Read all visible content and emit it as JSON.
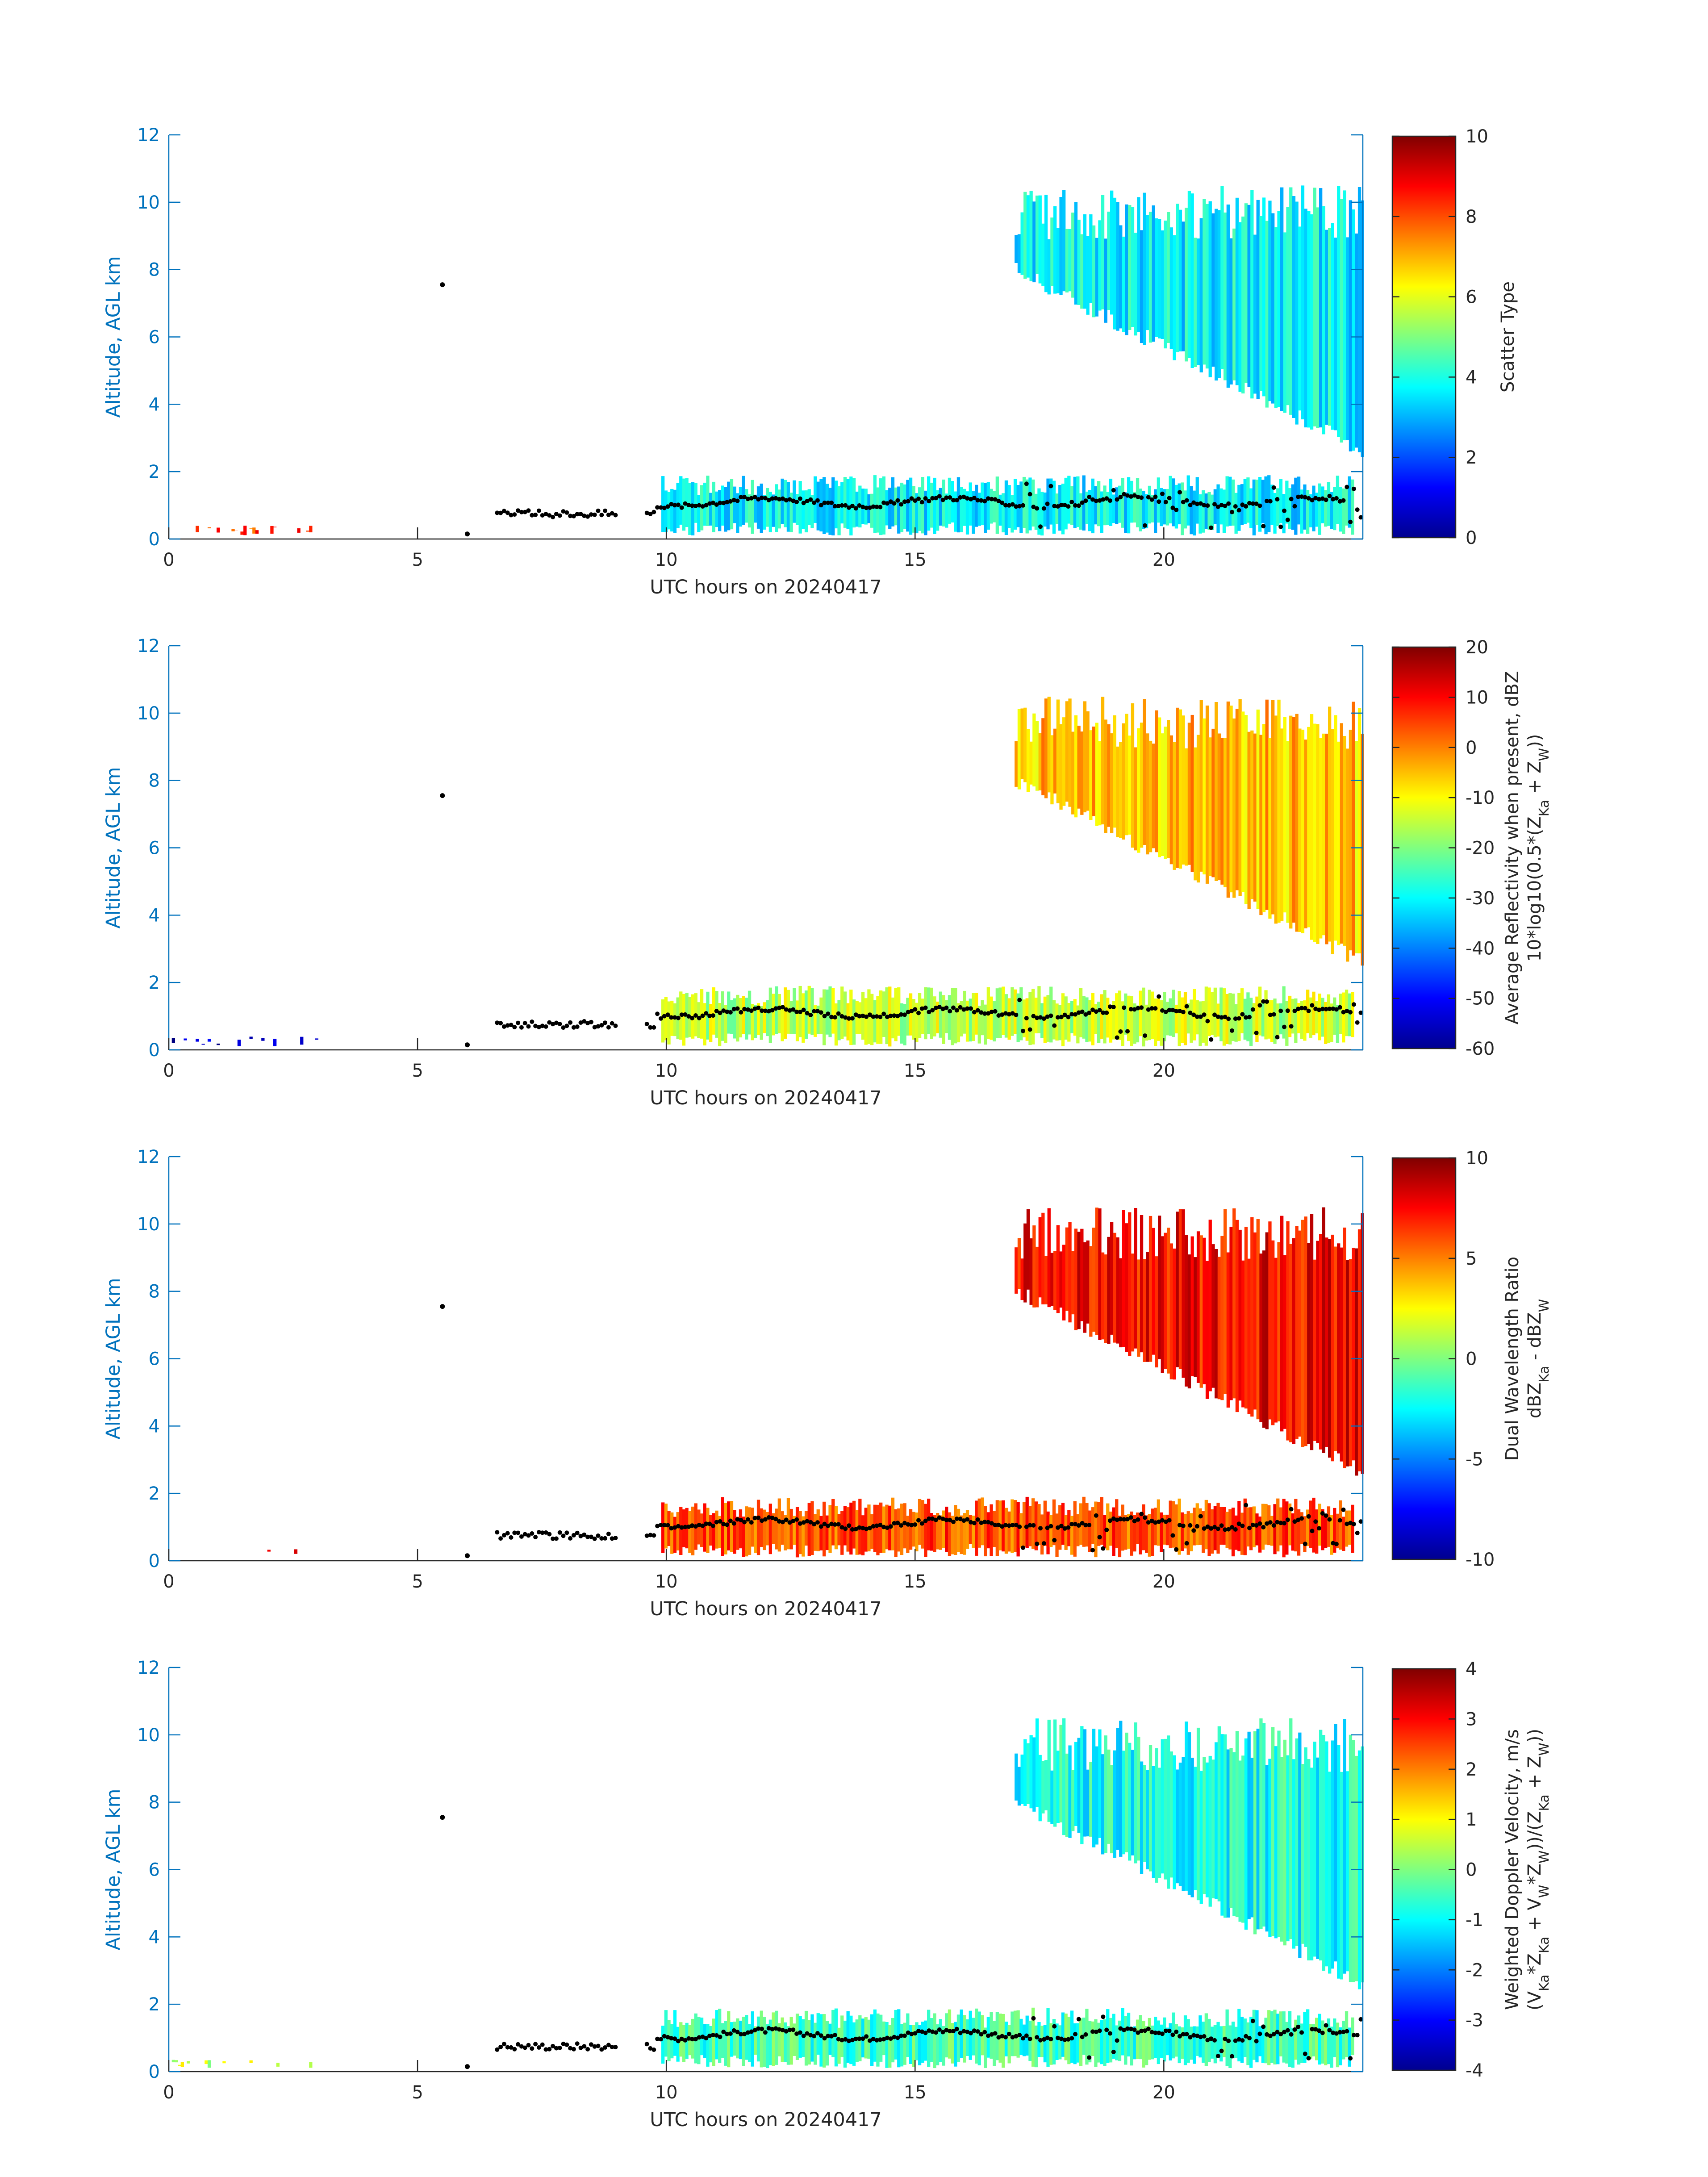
{
  "colors": {
    "axis_blue": "#0072BD",
    "text_dark": "#262626",
    "colormap": "jet",
    "marker": "#000000"
  },
  "chart_data": [
    {
      "type": "heatmap",
      "title": "",
      "xlabel": "UTC hours on 20240417",
      "ylabel": "Altitude, AGL km",
      "xlim": [
        0,
        24
      ],
      "ylim": [
        0,
        12
      ],
      "xticks": [
        "0",
        "5",
        "10",
        "15",
        "20"
      ],
      "yticks": [
        "0",
        "2",
        "4",
        "6",
        "8",
        "10",
        "12"
      ],
      "colorbar": {
        "label_lines": [
          "Scatter Type"
        ],
        "range": [
          0,
          10
        ],
        "ticks": [
          "0",
          "2",
          "4",
          "6",
          "8",
          "10"
        ]
      },
      "regions": [
        {
          "name": "upper cloud layer",
          "x": [
            17,
            24
          ],
          "top_km": 10.5,
          "base_km_start": 8.0,
          "base_km_end": 2.6,
          "value": 3.7
        },
        {
          "name": "boundary layer cloud",
          "x": [
            9.9,
            23.8
          ],
          "top_km": 1.9,
          "base_km": 0.1,
          "value": 3.7
        },
        {
          "name": "low clutter",
          "x": [
            0,
            3.0
          ],
          "top_km": 0.4,
          "base_km": 0.1,
          "value": 8.2
        }
      ],
      "cloud_base_points": {
        "x_range": [
          6.6,
          24
        ],
        "typical_km": 1.1,
        "isolated": [
          [
            5.5,
            7.55
          ],
          [
            6.0,
            0.15
          ]
        ]
      }
    },
    {
      "type": "heatmap",
      "title": "",
      "xlabel": "UTC hours on 20240417",
      "ylabel": "Altitude, AGL km",
      "xlim": [
        0,
        24
      ],
      "ylim": [
        0,
        12
      ],
      "xticks": [
        "0",
        "5",
        "10",
        "15",
        "20"
      ],
      "yticks": [
        "0",
        "2",
        "4",
        "6",
        "8",
        "10",
        "12"
      ],
      "colorbar": {
        "label_lines": [
          "Average Reflectivity when present, dBZ",
          "10*log10(0.5*(Z_Ka + Z_W))"
        ],
        "range": [
          -60,
          20
        ],
        "ticks": [
          "-60",
          "-50",
          "-40",
          "-30",
          "-20",
          "-10",
          "0",
          "10",
          "20"
        ]
      },
      "regions": [
        {
          "name": "upper cloud layer",
          "x": [
            17,
            24
          ],
          "top_km": 10.5,
          "base_km_start": 8.0,
          "base_km_end": 2.6,
          "value": -5
        },
        {
          "name": "boundary layer cloud",
          "x": [
            9.9,
            23.8
          ],
          "top_km": 1.9,
          "base_km": 0.1,
          "value": -15
        },
        {
          "name": "low clutter",
          "x": [
            0,
            3.0
          ],
          "top_km": 0.4,
          "base_km": 0.1,
          "value": -55
        }
      ],
      "cloud_base_points": {
        "x_range": [
          6.6,
          24
        ],
        "typical_km": 1.1,
        "isolated": [
          [
            5.5,
            7.55
          ],
          [
            6.0,
            0.15
          ]
        ]
      }
    },
    {
      "type": "heatmap",
      "title": "",
      "xlabel": "UTC hours on 20240417",
      "ylabel": "Altitude, AGL km",
      "xlim": [
        0,
        24
      ],
      "ylim": [
        0,
        12
      ],
      "xticks": [
        "0",
        "5",
        "10",
        "15",
        "20"
      ],
      "yticks": [
        "0",
        "2",
        "4",
        "6",
        "8",
        "10",
        "12"
      ],
      "colorbar": {
        "label_lines": [
          "Dual Wavelength Ratio",
          "dBZ_Ka - dBZ_W"
        ],
        "range": [
          -10,
          10
        ],
        "ticks": [
          "-10",
          "-5",
          "0",
          "5",
          "10"
        ]
      },
      "regions": [
        {
          "name": "upper cloud layer",
          "x": [
            17,
            24
          ],
          "top_km": 10.5,
          "base_km_start": 8.0,
          "base_km_end": 2.6,
          "value": 7.5
        },
        {
          "name": "boundary layer cloud",
          "x": [
            9.9,
            23.8
          ],
          "top_km": 1.9,
          "base_km": 0.1,
          "value": 6.0
        },
        {
          "name": "low clutter",
          "x": [
            1.8,
            2.6
          ],
          "top_km": 0.35,
          "base_km": 0.2,
          "value": 8.0
        }
      ],
      "cloud_base_points": {
        "x_range": [
          6.6,
          24
        ],
        "typical_km": 1.1,
        "isolated": [
          [
            5.5,
            7.55
          ],
          [
            6.0,
            0.15
          ]
        ]
      }
    },
    {
      "type": "heatmap",
      "title": "",
      "xlabel": "UTC hours on 20240417",
      "ylabel": "Altitude, AGL km",
      "xlim": [
        0,
        24
      ],
      "ylim": [
        0,
        12
      ],
      "xticks": [
        "0",
        "5",
        "10",
        "15",
        "20"
      ],
      "yticks": [
        "0",
        "2",
        "4",
        "6",
        "8",
        "10",
        "12"
      ],
      "colorbar": {
        "label_lines": [
          "Weighted Doppler Velocity, m/s",
          "(V_Ka*Z_Ka + V_W*Z_W))/(Z_Ka + Z_W))"
        ],
        "range": [
          -4,
          4
        ],
        "ticks": [
          "-4",
          "-3",
          "-2",
          "-1",
          "0",
          "1",
          "2",
          "3",
          "4"
        ]
      },
      "regions": [
        {
          "name": "upper cloud layer",
          "x": [
            17,
            24
          ],
          "top_km": 10.5,
          "base_km_start": 8.0,
          "base_km_end": 2.6,
          "value": -0.8
        },
        {
          "name": "boundary layer cloud",
          "x": [
            9.9,
            23.8
          ],
          "top_km": 1.9,
          "base_km": 0.1,
          "value": -0.5
        },
        {
          "name": "low clutter",
          "x": [
            0,
            3.0
          ],
          "top_km": 0.35,
          "base_km": 0.1,
          "value": 0.5
        }
      ],
      "cloud_base_points": {
        "x_range": [
          6.6,
          24
        ],
        "typical_km": 1.1,
        "isolated": [
          [
            5.5,
            7.55
          ],
          [
            6.0,
            0.15
          ]
        ]
      }
    }
  ]
}
